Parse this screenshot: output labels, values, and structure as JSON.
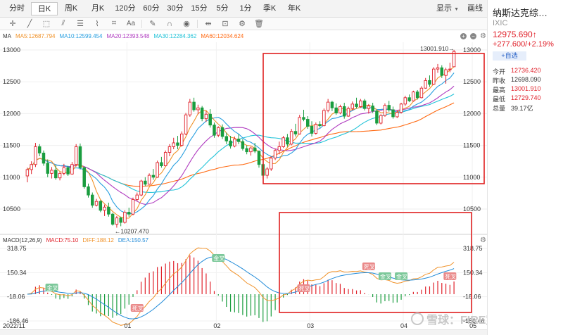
{
  "period_tabs": [
    {
      "label": "分时",
      "width": 40
    },
    {
      "label": "日K",
      "width": 38,
      "active": true
    },
    {
      "label": "周K",
      "width": 38
    },
    {
      "label": "月K",
      "width": 38
    },
    {
      "label": "120分",
      "width": 40
    },
    {
      "label": "60分",
      "width": 34
    },
    {
      "label": "30分",
      "width": 34
    },
    {
      "label": "15分",
      "width": 34
    },
    {
      "label": "5分",
      "width": 32
    },
    {
      "label": "1分",
      "width": 34
    },
    {
      "label": "季K",
      "width": 34
    },
    {
      "label": "年K",
      "width": 36
    }
  ],
  "period_right": {
    "display": "显示",
    "draw": "画线"
  },
  "ma_legend": {
    "label": "MA",
    "ma5": "MA5:12687.794",
    "ma10": "MA10:12599.454",
    "ma20": "MA20:12393.548",
    "ma30": "MA30:12284.362",
    "ma60": "MA60:12034.624"
  },
  "macd_legend": {
    "label": "MACD(12,26,9)",
    "macd": "MACD:75.10",
    "diff": "DIFF:188.12",
    "dea": "DEA:150.57"
  },
  "colors": {
    "up": "#e0222b",
    "down": "#1a9d3f",
    "ma5": "#f0932b",
    "ma10": "#2aa0e0",
    "ma20": "#b03cc0",
    "ma30": "#22c3d8",
    "ma60": "#ff6a13",
    "diff": "#f0932b",
    "dea": "#1f8ad8",
    "annotation_box": "#e02020"
  },
  "price_axis": {
    "ticks": [
      "13000",
      "12500",
      "12000",
      "11500",
      "11000",
      "10500"
    ],
    "max_label": "13001.910→",
    "min_label": "←10207.470"
  },
  "macd_axis": {
    "ticks": [
      "318.75",
      "150.34",
      "-18.06",
      "-186.46"
    ]
  },
  "date_axis": [
    "2022/11",
    "01",
    "02",
    "03",
    "04",
    "05"
  ],
  "cross_labels": {
    "golden": "金叉",
    "death": "死叉"
  },
  "info": {
    "name": "纳斯达克综…",
    "code": "IXIC",
    "price": "12975.690↑",
    "change": "+277.600/+2.19%",
    "watch_button": "+自选",
    "stats": [
      {
        "label": "今开",
        "value": "12736.420",
        "tone": "red"
      },
      {
        "label": "昨收",
        "value": "12698.090",
        "tone": "dark"
      },
      {
        "label": "最高",
        "value": "13001.910",
        "tone": "red"
      },
      {
        "label": "最低",
        "value": "12729.740",
        "tone": "red"
      },
      {
        "label": "总量",
        "value": "39.17亿",
        "tone": "dark"
      }
    ]
  },
  "watermark": "雪球：FIRE定投",
  "chart_data": {
    "type": "candlestick",
    "title": "",
    "ylim": [
      10207.47,
      13001.91
    ],
    "candles": [
      [
        11020,
        11150,
        10920,
        11120
      ],
      [
        11120,
        11250,
        11050,
        11200
      ],
      [
        11200,
        11540,
        11160,
        11480
      ],
      [
        11480,
        11520,
        11330,
        11380
      ],
      [
        11380,
        11420,
        11180,
        11220
      ],
      [
        11220,
        11280,
        11000,
        11060
      ],
      [
        11060,
        11160,
        10980,
        11110
      ],
      [
        11110,
        11190,
        10960,
        10990
      ],
      [
        10990,
        11080,
        10950,
        11060
      ],
      [
        11060,
        11210,
        11030,
        11150
      ],
      [
        11150,
        11180,
        11020,
        11050
      ],
      [
        11050,
        11240,
        11040,
        11200
      ],
      [
        11200,
        11520,
        11170,
        11480
      ],
      [
        11480,
        11530,
        11120,
        11150
      ],
      [
        11150,
        11160,
        10820,
        10850
      ],
      [
        10850,
        10900,
        10680,
        10720
      ],
      [
        10720,
        10760,
        10520,
        10560
      ],
      [
        10560,
        10660,
        10540,
        10620
      ],
      [
        10620,
        10640,
        10450,
        10480
      ],
      [
        10480,
        10570,
        10390,
        10530
      ],
      [
        10530,
        10600,
        10380,
        10420
      ],
      [
        10420,
        10440,
        10240,
        10260
      ],
      [
        10260,
        10390,
        10207,
        10360
      ],
      [
        10360,
        10380,
        10230,
        10290
      ],
      [
        10290,
        10480,
        10270,
        10450
      ],
      [
        10450,
        10520,
        10380,
        10420
      ],
      [
        10420,
        10680,
        10400,
        10650
      ],
      [
        10650,
        10760,
        10620,
        10720
      ],
      [
        10720,
        10960,
        10700,
        10940
      ],
      [
        10940,
        11000,
        10860,
        10890
      ],
      [
        10890,
        11060,
        10880,
        11030
      ],
      [
        11030,
        11130,
        10960,
        11000
      ],
      [
        11000,
        11260,
        10990,
        11230
      ],
      [
        11230,
        11320,
        11150,
        11180
      ],
      [
        11180,
        11420,
        11170,
        11390
      ],
      [
        11390,
        11520,
        11330,
        11480
      ],
      [
        11480,
        11620,
        11440,
        11540
      ],
      [
        11540,
        11650,
        11440,
        11500
      ],
      [
        11500,
        11720,
        11480,
        11680
      ],
      [
        11680,
        12010,
        11660,
        11980
      ],
      [
        11980,
        12230,
        11950,
        12180
      ],
      [
        12180,
        12250,
        12030,
        12060
      ],
      [
        12060,
        12140,
        11990,
        12090
      ],
      [
        12090,
        12120,
        11880,
        11920
      ],
      [
        11920,
        12040,
        11870,
        11990
      ],
      [
        11990,
        12070,
        11780,
        11820
      ],
      [
        11820,
        11860,
        11620,
        11660
      ],
      [
        11660,
        11800,
        11630,
        11780
      ],
      [
        11780,
        11830,
        11600,
        11640
      ],
      [
        11640,
        11700,
        11520,
        11570
      ],
      [
        11570,
        11650,
        11450,
        11490
      ],
      [
        11490,
        11640,
        11470,
        11600
      ],
      [
        11600,
        11680,
        11520,
        11560
      ],
      [
        11560,
        11600,
        11420,
        11450
      ],
      [
        11450,
        11500,
        11360,
        11400
      ],
      [
        11400,
        11480,
        11340,
        11460
      ],
      [
        11460,
        11540,
        11380,
        11410
      ],
      [
        11410,
        11420,
        11150,
        11200
      ],
      [
        11200,
        11220,
        10980,
        11030
      ],
      [
        11030,
        11160,
        10980,
        11130
      ],
      [
        11130,
        11330,
        11100,
        11300
      ],
      [
        11300,
        11450,
        11270,
        11420
      ],
      [
        11420,
        11560,
        11360,
        11480
      ],
      [
        11480,
        11650,
        11460,
        11620
      ],
      [
        11620,
        11680,
        11480,
        11520
      ],
      [
        11520,
        11760,
        11500,
        11720
      ],
      [
        11720,
        11840,
        11640,
        11680
      ],
      [
        11680,
        11980,
        11670,
        11940
      ],
      [
        11940,
        12060,
        11880,
        11910
      ],
      [
        11910,
        11960,
        11760,
        11800
      ],
      [
        11800,
        11880,
        11640,
        11690
      ],
      [
        11690,
        11860,
        11670,
        11830
      ],
      [
        11830,
        11880,
        11780,
        11810
      ],
      [
        11810,
        12080,
        11800,
        12050
      ],
      [
        12050,
        12230,
        12020,
        12180
      ],
      [
        12180,
        12200,
        12040,
        12090
      ],
      [
        12090,
        12160,
        11980,
        12010
      ],
      [
        12010,
        12140,
        11990,
        12110
      ],
      [
        12110,
        12170,
        11920,
        11960
      ],
      [
        11960,
        12110,
        11950,
        12080
      ],
      [
        12080,
        12190,
        12050,
        12150
      ],
      [
        12150,
        12250,
        12080,
        12110
      ],
      [
        12110,
        12230,
        12090,
        12200
      ],
      [
        12200,
        12230,
        12050,
        12080
      ],
      [
        12080,
        12150,
        12000,
        12120
      ],
      [
        12120,
        12170,
        12010,
        12040
      ],
      [
        12040,
        12060,
        11820,
        11850
      ],
      [
        11850,
        11990,
        11830,
        11970
      ],
      [
        11970,
        12160,
        11950,
        12130
      ],
      [
        12130,
        12200,
        12030,
        12060
      ],
      [
        12060,
        12110,
        11920,
        11950
      ],
      [
        11950,
        12050,
        11930,
        12020
      ],
      [
        12020,
        12170,
        12000,
        12150
      ],
      [
        12150,
        12280,
        12120,
        12250
      ],
      [
        12250,
        12300,
        12180,
        12200
      ],
      [
        12200,
        12360,
        12190,
        12340
      ],
      [
        12340,
        12370,
        12220,
        12250
      ],
      [
        12250,
        12430,
        12240,
        12400
      ],
      [
        12400,
        12560,
        12390,
        12520
      ],
      [
        12520,
        12600,
        12420,
        12460
      ],
      [
        12460,
        12730,
        12450,
        12700
      ],
      [
        12700,
        12780,
        12640,
        12720
      ],
      [
        12720,
        12760,
        12560,
        12600
      ],
      [
        12600,
        12720,
        12470,
        12690
      ],
      [
        12690,
        12800,
        12650,
        12700
      ],
      [
        12736.42,
        13001.91,
        12729.74,
        12975.69
      ]
    ],
    "max_point": 13001.91,
    "min_point": 10207.47,
    "macd_ylim": [
      -186.46,
      318.75
    ]
  }
}
